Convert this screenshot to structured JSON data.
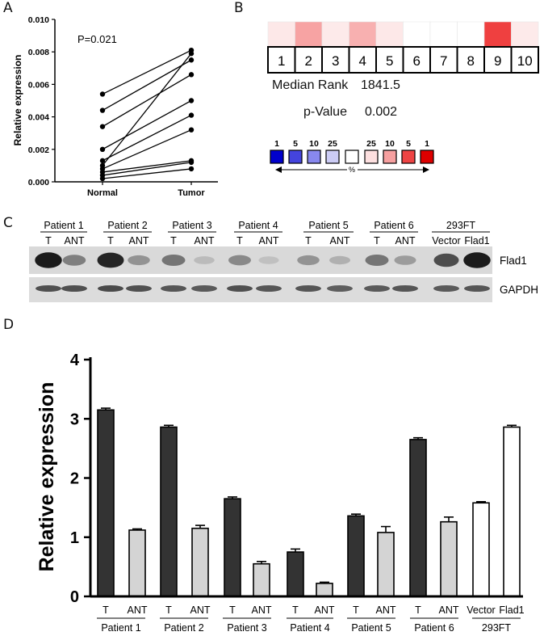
{
  "panel_labels": {
    "a": "A",
    "b": "B",
    "c": "C",
    "d": "D"
  },
  "colors": {
    "dark_bar": "#333333",
    "light_bar": "#d4d4d4",
    "white_bar": "#ffffff",
    "axis": "#000000"
  },
  "chart_data": [
    {
      "panel": "A",
      "type": "line",
      "ylabel": "Relative expression",
      "categories": [
        "Normal",
        "Tumor"
      ],
      "yticks": [
        "0.000",
        "0.002",
        "0.004",
        "0.006",
        "0.008",
        "0.010"
      ],
      "ylim": [
        0,
        0.01
      ],
      "annotation": "P=0.021",
      "pairs": [
        [
          0.0054,
          0.0081
        ],
        [
          0.0044,
          0.0075
        ],
        [
          0.0034,
          0.0066
        ],
        [
          0.002,
          0.005
        ],
        [
          0.0013,
          0.0041
        ],
        [
          0.001,
          0.0079
        ],
        [
          0.0008,
          0.0032
        ],
        [
          0.0006,
          0.0013
        ],
        [
          0.0004,
          0.0012
        ],
        [
          0.0002,
          0.0008
        ]
      ]
    },
    {
      "panel": "B",
      "type": "heatmap",
      "ranks": [
        "1",
        "2",
        "3",
        "4",
        "5",
        "6",
        "7",
        "8",
        "9",
        "10"
      ],
      "cell_colors": [
        "#fde8e8",
        "#f7a3a3",
        "#fdeaea",
        "#f8b0b0",
        "#fde8e8",
        "#ffffff",
        "#ffffff",
        "#ffffff",
        "#ef4040",
        "#fdeaea"
      ],
      "median_rank_label": "Median Rank",
      "median_rank_value": "1841.5",
      "pvalue_label": "p-Value",
      "pvalue_value": "0.002",
      "legend_labels": [
        "1",
        "5",
        "10",
        "25",
        "",
        "25",
        "10",
        "5",
        "1"
      ],
      "legend_colors": [
        "#0000cc",
        "#4444dd",
        "#8888ee",
        "#ccccf5",
        "#ffffff",
        "#fde0e0",
        "#f7a0a0",
        "#ee4444",
        "#dd0000"
      ],
      "legend_unit": "%"
    },
    {
      "panel": "C",
      "type": "table",
      "groups": [
        {
          "label": "Patient 1",
          "lanes": [
            "T",
            "ANT"
          ]
        },
        {
          "label": "Patient 2",
          "lanes": [
            "T",
            "ANT"
          ]
        },
        {
          "label": "Patient 3",
          "lanes": [
            "T",
            "ANT"
          ]
        },
        {
          "label": "Patient 4",
          "lanes": [
            "T",
            "ANT"
          ]
        },
        {
          "label": "Patient 5",
          "lanes": [
            "T",
            "ANT"
          ]
        },
        {
          "label": "Patient 6",
          "lanes": [
            "T",
            "ANT"
          ]
        },
        {
          "label": "293FT",
          "lanes": [
            "Vector",
            "Flad1"
          ]
        }
      ],
      "flad1_intensity": [
        0.95,
        0.45,
        0.9,
        0.35,
        0.5,
        0.15,
        0.4,
        0.12,
        0.35,
        0.2,
        0.5,
        0.3,
        0.7,
        0.95
      ],
      "gapdh_intensity": [
        0.75,
        0.75,
        0.78,
        0.75,
        0.72,
        0.7,
        0.75,
        0.72,
        0.72,
        0.68,
        0.7,
        0.72,
        0.7,
        0.72
      ],
      "row_labels": [
        "Flad1",
        "GAPDH"
      ]
    },
    {
      "panel": "D",
      "type": "bar",
      "ylabel": "Relative expression",
      "ylim": [
        0,
        4
      ],
      "yticks": [
        "0",
        "1",
        "2",
        "3",
        "4"
      ],
      "categories": [
        "T",
        "ANT",
        "T",
        "ANT",
        "T",
        "ANT",
        "T",
        "ANT",
        "T",
        "ANT",
        "T",
        "ANT",
        "Vector",
        "Flad1"
      ],
      "values": [
        3.15,
        1.12,
        2.86,
        1.15,
        1.65,
        0.55,
        0.75,
        0.22,
        1.36,
        1.08,
        2.65,
        1.26,
        1.58,
        2.86
      ],
      "errors": [
        0.03,
        0.02,
        0.03,
        0.05,
        0.03,
        0.04,
        0.05,
        0.02,
        0.03,
        0.1,
        0.03,
        0.08,
        0.02,
        0.03
      ],
      "bar_styles": [
        "dark",
        "light",
        "dark",
        "light",
        "dark",
        "light",
        "dark",
        "light",
        "dark",
        "light",
        "dark",
        "light",
        "white",
        "white"
      ],
      "groups": [
        "Patient 1",
        "Patient 2",
        "Patient 3",
        "Patient 4",
        "Patient 5",
        "Patient 6",
        "293FT"
      ]
    }
  ]
}
